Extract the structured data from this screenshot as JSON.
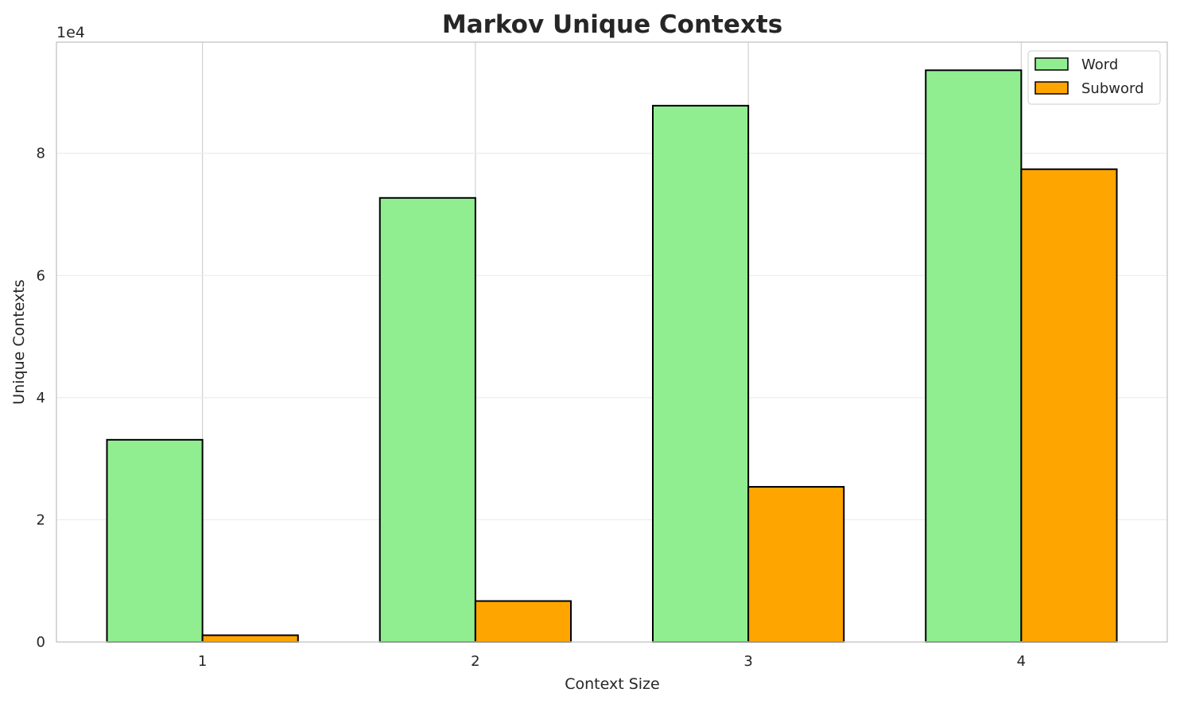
{
  "chart_data": {
    "type": "bar",
    "title": "Markov Unique Contexts",
    "xlabel": "Context Size",
    "ylabel": "Unique Contexts",
    "y_offset_label": "1e4",
    "categories": [
      "1",
      "2",
      "3",
      "4"
    ],
    "series": [
      {
        "name": "Word",
        "color": "#90ee90",
        "values": [
          33100,
          72700,
          87800,
          93600
        ]
      },
      {
        "name": "Subword",
        "color": "#ffa500",
        "values": [
          1100,
          6700,
          25400,
          77400
        ]
      }
    ],
    "ylim": [
      0,
      98200
    ],
    "yticks": [
      0,
      20000,
      40000,
      60000,
      80000
    ],
    "ytick_labels": [
      "0",
      "2",
      "4",
      "6",
      "8"
    ],
    "grid": true,
    "legend_position": "top-right"
  }
}
